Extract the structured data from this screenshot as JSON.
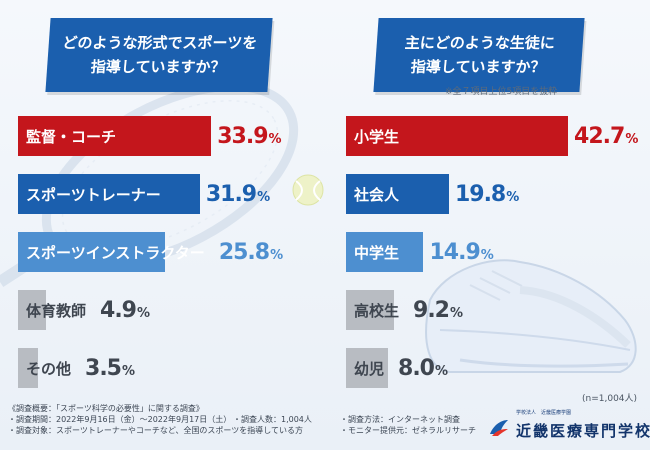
{
  "left_question": "どのような形式でスポーツを\n指導していますか？",
  "right_question": "主にどのような生徒に\n指導していますか？",
  "right_note": "※全７項目上位5項目を抜粋",
  "sample_note": "(n=1,004人)",
  "footer": {
    "line1": "《調査概要：「スポーツ科学の必要性」に関する調査》",
    "line2": "・調査期間：2022年9月16日（金）〜2022年9月17日（土）",
    "line3": "・調査対象：スポーツトレーナーやコーチなど、全国のスポーツを指導している方",
    "line4": "・調査人数：1,004人",
    "line5": "・調査方法：インターネット調査",
    "line6": "・モニター提供元：ゼネラルリサーチ"
  },
  "logo": {
    "small_text": "学校法人　近畿医療学園",
    "name": "近畿医療専門学校"
  },
  "colors": {
    "red": "#c4161c",
    "blue": "#1b5fae",
    "light_blue": "#4d8fd0",
    "gray": "#b8bcc2",
    "gray_text": "#3f4650"
  },
  "chart_data": [
    {
      "type": "bar",
      "orientation": "horizontal",
      "title": "どのような形式でスポーツを指導していますか？",
      "unit": "%",
      "categories": [
        "監督・コーチ",
        "スポーツトレーナー",
        "スポーツインストラクター",
        "体育教師",
        "その他"
      ],
      "values": [
        33.9,
        31.9,
        25.8,
        4.9,
        3.5
      ]
    },
    {
      "type": "bar",
      "orientation": "horizontal",
      "title": "主にどのような生徒に指導していますか？",
      "unit": "%",
      "categories": [
        "小学生",
        "社会人",
        "中学生",
        "高校生",
        "幼児"
      ],
      "values": [
        42.7,
        19.8,
        14.9,
        9.2,
        8.0
      ]
    }
  ]
}
